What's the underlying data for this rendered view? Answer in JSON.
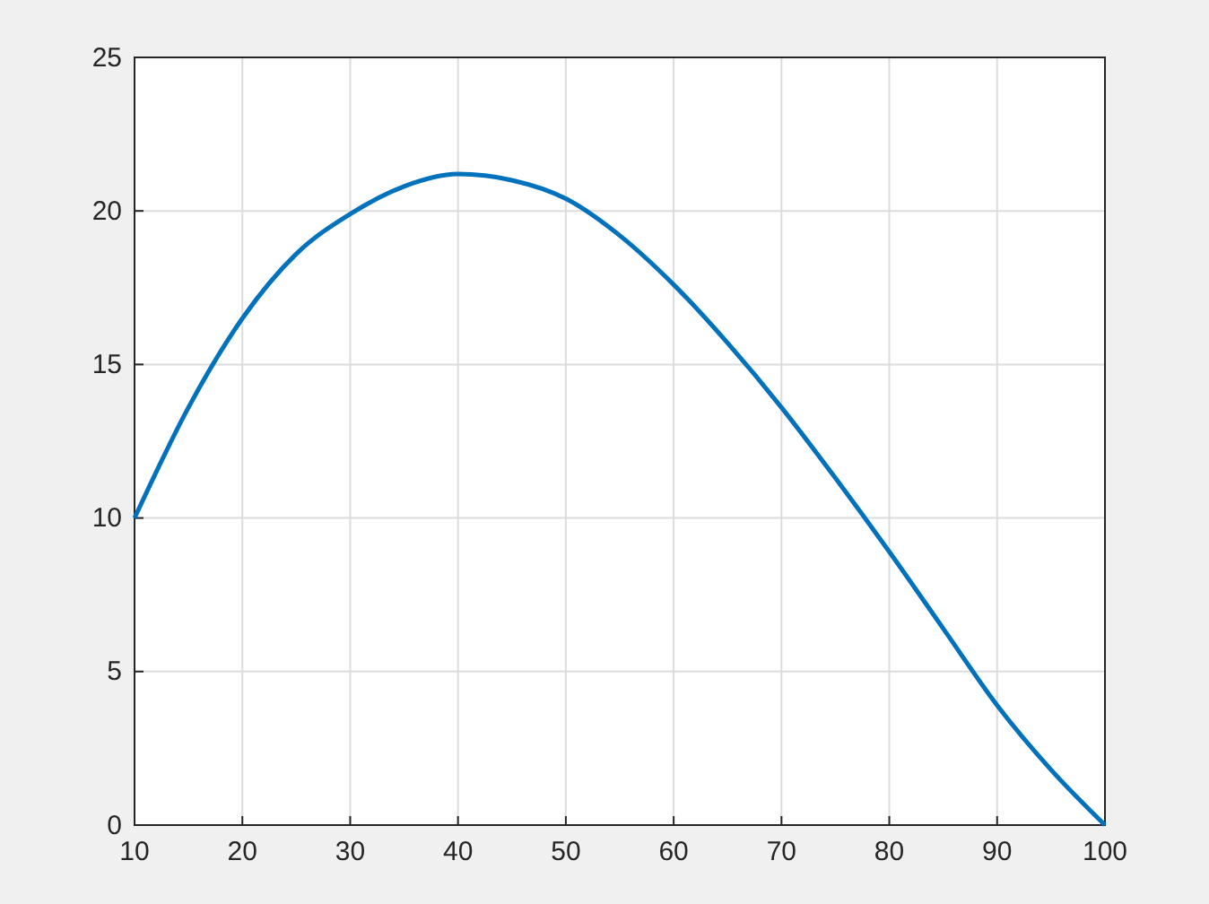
{
  "chart_data": {
    "type": "line",
    "x": [
      10,
      15,
      20,
      25,
      30,
      35,
      40,
      45,
      50,
      55,
      60,
      65,
      70,
      75,
      80,
      85,
      90,
      95,
      100
    ],
    "series": [
      {
        "color": "#0072bd",
        "values": [
          10,
          13.6,
          16.5,
          18.6,
          19.9,
          20.8,
          21.2,
          21.0,
          20.4,
          19.2,
          17.6,
          15.7,
          13.6,
          11.3,
          8.9,
          6.4,
          3.9,
          1.8,
          0
        ]
      }
    ],
    "xlim": [
      10,
      100
    ],
    "xticks": [
      10,
      20,
      30,
      40,
      50,
      60,
      70,
      80,
      90,
      100
    ],
    "ylim": [
      0,
      25
    ],
    "yticks": [
      0,
      5,
      10,
      15,
      20,
      25
    ],
    "grid": true,
    "line_style": "solid",
    "marker": "none"
  }
}
